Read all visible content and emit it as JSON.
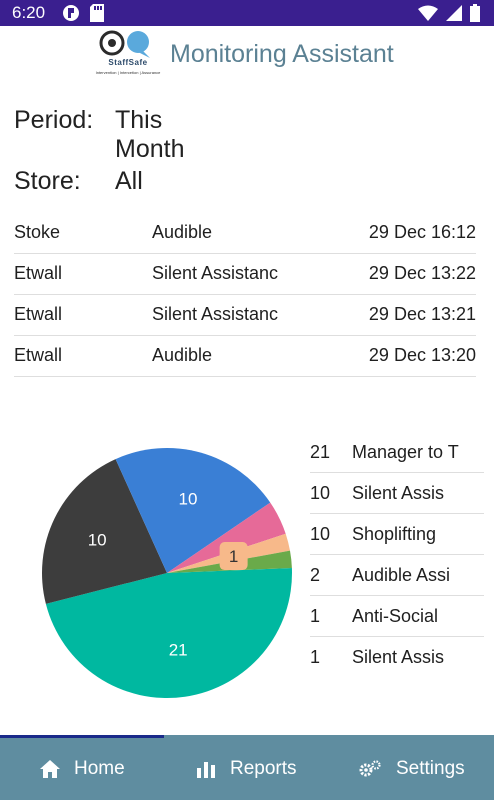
{
  "status_bar": {
    "time": "6:20",
    "left_icons": [
      "circle-p-icon",
      "sd-card-icon"
    ],
    "right_icons": [
      "wifi-icon",
      "signal-icon",
      "battery-icon"
    ],
    "background": "#3a1f8f"
  },
  "header": {
    "logo_text": "StaffSafe",
    "logo_tagline": "Intervention | Intercetion | Assurance",
    "title": "Monitoring Assistant",
    "title_color": "#5b8193"
  },
  "filters": {
    "period_label": "Period:",
    "period_value": "This Month",
    "store_label": "Store:",
    "store_value": "All"
  },
  "alerts": [
    {
      "store": "Stoke",
      "type": "Audible",
      "time": "29 Dec 16:12"
    },
    {
      "store": "Etwall",
      "type": "Silent Assistanc",
      "time": "29 Dec 13:22"
    },
    {
      "store": "Etwall",
      "type": "Silent Assistanc",
      "time": "29 Dec 13:21"
    },
    {
      "store": "Etwall",
      "type": "Audible",
      "time": "29 Dec 13:20"
    }
  ],
  "chart_data": {
    "type": "pie",
    "categories": [
      "Manager to T",
      "Silent Assis",
      "Shoplifting",
      "Audible Assi",
      "Anti-Social",
      "Silent Assis"
    ],
    "values": [
      21,
      10,
      10,
      2,
      1,
      1
    ],
    "slice_labels": [
      "21",
      "10",
      "10",
      "",
      "1",
      ""
    ],
    "colors": [
      "#00b8a0",
      "#3d3d3d",
      "#3a7fd5",
      "#e66a98",
      "#f7b98a",
      "#6aaa4a"
    ]
  },
  "legend": [
    {
      "count": "21",
      "label": "Manager to T"
    },
    {
      "count": "10",
      "label": "Silent Assis"
    },
    {
      "count": "10",
      "label": "Shoplifting"
    },
    {
      "count": "2",
      "label": "Audible Assi"
    },
    {
      "count": "1",
      "label": "Anti-Social"
    },
    {
      "count": "1",
      "label": "Silent Assis"
    }
  ],
  "nav": {
    "home_label": "Home",
    "home_icon": "home-icon",
    "reports_label": "Reports",
    "reports_icon": "bar-chart-icon",
    "settings_label": "Settings",
    "settings_icon": "gears-icon",
    "background": "#5f8da0",
    "active_tab": "Home"
  }
}
